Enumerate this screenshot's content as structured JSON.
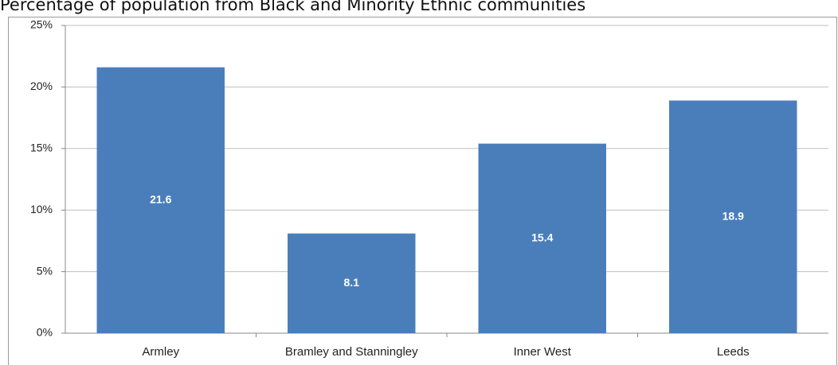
{
  "chart_data": {
    "type": "bar",
    "title": "Percentage of population from Black and Minority Ethnic communities",
    "categories": [
      "Armley",
      "Bramley and Stanningley",
      "Inner West",
      "Leeds"
    ],
    "values": [
      21.6,
      8.1,
      15.4,
      18.9
    ],
    "color": "#4a7ebb",
    "ylim": [
      0,
      25
    ],
    "yticks": [
      {
        "value": 0,
        "label": "0%"
      },
      {
        "value": 5,
        "label": "5%"
      },
      {
        "value": 10,
        "label": "10%"
      },
      {
        "value": 15,
        "label": "15%"
      },
      {
        "value": 20,
        "label": "20%"
      },
      {
        "value": 25,
        "label": "25%"
      }
    ],
    "grid": true
  }
}
